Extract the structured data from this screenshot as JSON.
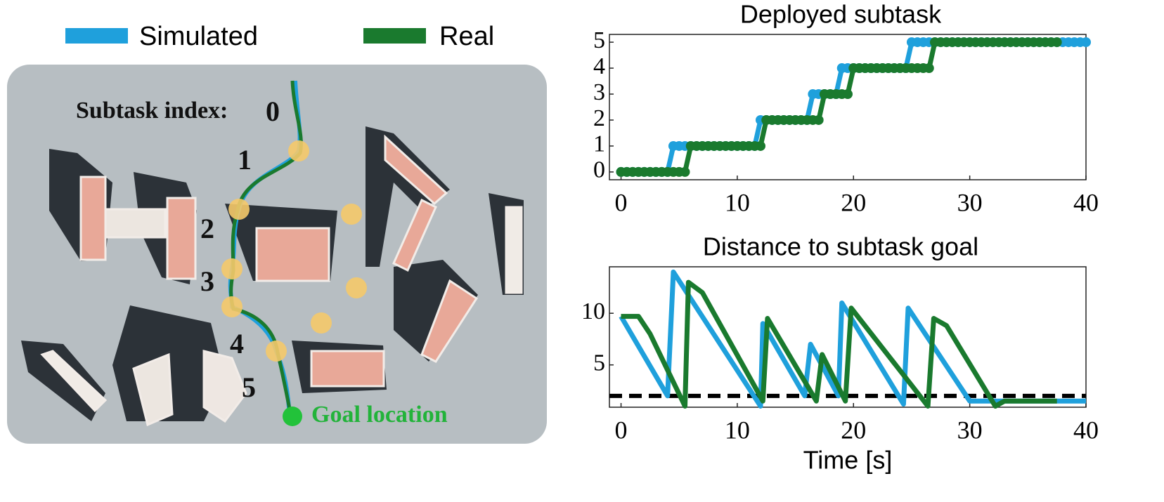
{
  "map": {
    "index_label": "Subtask index:",
    "indices": [
      "0",
      "1",
      "2",
      "3",
      "4",
      "5"
    ],
    "goal_label": "Goal location"
  },
  "chart_data": [
    {
      "type": "line",
      "title": "Deployed subtask",
      "markers": true,
      "x": [
        0,
        0.5,
        1,
        1.5,
        2,
        2.5,
        3,
        3.5,
        4,
        4.5,
        5,
        5.5,
        6,
        6.5,
        7,
        7.5,
        8,
        8.5,
        9,
        9.5,
        10,
        10.5,
        11,
        11.5,
        12,
        12.5,
        13,
        13.5,
        14,
        14.5,
        15,
        15.5,
        16,
        16.5,
        17,
        17.5,
        18,
        18.5,
        19,
        19.5,
        20,
        20.5,
        21,
        21.5,
        22,
        22.5,
        23,
        23.5,
        24,
        24.5,
        25,
        25.5,
        26,
        26.5,
        27,
        27.5,
        28,
        28.5,
        29,
        29.5,
        30,
        30.5,
        31,
        31.5,
        32,
        32.5,
        33,
        33.5,
        34,
        34.5,
        35,
        35.5,
        36,
        36.5,
        37,
        37.5,
        38,
        38.5,
        39,
        39.5,
        40
      ],
      "series": [
        {
          "name": "Simulated",
          "color": "#1fa0dc",
          "values": [
            0,
            0,
            0,
            0,
            0,
            0,
            0,
            0,
            0,
            1,
            1,
            1,
            1,
            1,
            1,
            1,
            1,
            1,
            1,
            1,
            1,
            1,
            1,
            1,
            2,
            2,
            2,
            2,
            2,
            2,
            2,
            2,
            2,
            3,
            3,
            3,
            3,
            3,
            4,
            4,
            4,
            4,
            4,
            4,
            4,
            4,
            4,
            4,
            4,
            4,
            5,
            5,
            5,
            5,
            5,
            5,
            5,
            5,
            5,
            5,
            5,
            5,
            5,
            5,
            5,
            5,
            5,
            5,
            5,
            5,
            5,
            5,
            5,
            5,
            5,
            5,
            5,
            5,
            5,
            5,
            5
          ]
        },
        {
          "name": "Real",
          "color": "#1a7a2e",
          "values": [
            0,
            0,
            0,
            0,
            0,
            0,
            0,
            0,
            0,
            0,
            0,
            0,
            1,
            1,
            1,
            1,
            1,
            1,
            1,
            1,
            1,
            1,
            1,
            1,
            1,
            2,
            2,
            2,
            2,
            2,
            2,
            2,
            2,
            2,
            2,
            3,
            3,
            3,
            3,
            3,
            4,
            4,
            4,
            4,
            4,
            4,
            4,
            4,
            4,
            4,
            4,
            4,
            4,
            4,
            5,
            5,
            5,
            5,
            5,
            5,
            5,
            5,
            5,
            5,
            5,
            5,
            5,
            5,
            5,
            5,
            5,
            5,
            5,
            5,
            5,
            5,
            null,
            null,
            null,
            null,
            null
          ]
        }
      ],
      "xlim": [
        -1,
        40
      ],
      "ylim": [
        -0.3,
        5.3
      ],
      "xticks": [
        0,
        10,
        20,
        30,
        40
      ],
      "yticks": [
        0,
        1,
        2,
        3,
        4,
        5
      ]
    },
    {
      "type": "line",
      "title": "Distance to subtask goal",
      "xlabel": "Time [s]",
      "markers": false,
      "threshold": 2,
      "series": [
        {
          "name": "Simulated",
          "color": "#1fa0dc",
          "x": [
            0,
            4,
            4.5,
            12,
            12.2,
            15.8,
            16.3,
            18.7,
            19,
            24.3,
            24.7,
            30,
            40
          ],
          "values": [
            9.7,
            2,
            14,
            1,
            9,
            2,
            7,
            2,
            11,
            1.2,
            10.5,
            1.5,
            1.5
          ]
        },
        {
          "name": "Real",
          "color": "#1a7a2e",
          "x": [
            0,
            1.5,
            2.5,
            5.5,
            5.8,
            7,
            12.2,
            12.6,
            16.8,
            17.3,
            19.3,
            19.8,
            26.4,
            26.9,
            28,
            32.2,
            33,
            37.5
          ],
          "values": [
            9.7,
            9.7,
            8,
            1,
            13,
            12,
            1.5,
            9.5,
            1.5,
            6,
            1.5,
            10.5,
            1,
            9.5,
            8.8,
            1,
            1.5,
            1.5
          ]
        }
      ],
      "xlim": [
        -1,
        40
      ],
      "ylim": [
        0.9,
        14.5
      ],
      "xticks": [
        0,
        10,
        20,
        30,
        40
      ],
      "yticks": [
        5,
        10
      ]
    }
  ]
}
